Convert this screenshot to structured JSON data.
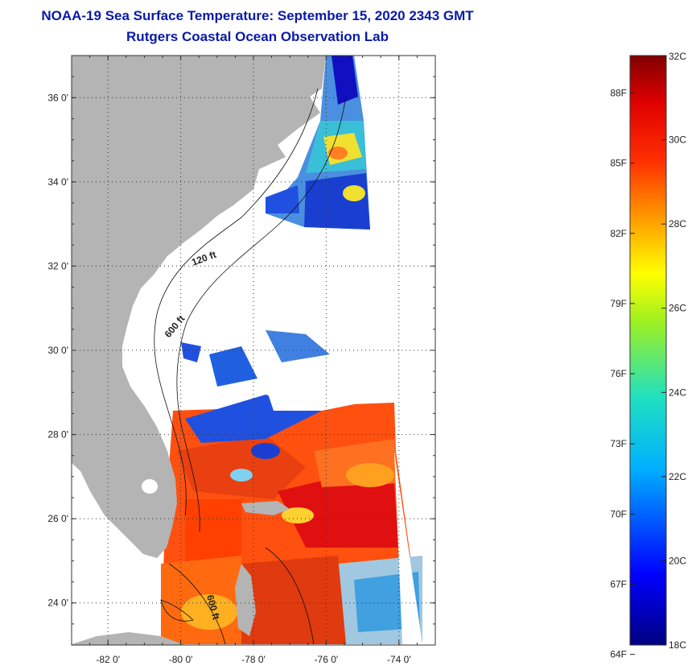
{
  "title": "NOAA-19 Sea Surface Temperature:  September 15, 2020 2343 GMT",
  "subtitle": "Rutgers Coastal Ocean Observation Lab",
  "map": {
    "lat_range": [
      23.0,
      37.0
    ],
    "lon_range": [
      -83.0,
      -73.0
    ],
    "lat_labels": [
      {
        "value": 36,
        "text": "36 0'"
      },
      {
        "value": 34,
        "text": "34 0'"
      },
      {
        "value": 32,
        "text": "32 0'"
      },
      {
        "value": 30,
        "text": "30 0'"
      },
      {
        "value": 28,
        "text": "28 0'"
      },
      {
        "value": 26,
        "text": "26 0'"
      },
      {
        "value": 24,
        "text": "24 0'"
      }
    ],
    "lon_labels": [
      {
        "value": -82,
        "text": "-82 0'"
      },
      {
        "value": -80,
        "text": "-80 0'"
      },
      {
        "value": -78,
        "text": "-78 0'"
      },
      {
        "value": -76,
        "text": "-76 0'"
      },
      {
        "value": -74,
        "text": "-74 0'"
      }
    ],
    "contour_labels": [
      {
        "text": "120 ft"
      },
      {
        "text": "600 ft"
      },
      {
        "text": "600 ft"
      }
    ],
    "colors": {
      "land": "#b4b4b4",
      "ocean_nodata": "#ffffff",
      "grid": "#333333"
    }
  },
  "colorbar": {
    "range_c": [
      18,
      32
    ],
    "celsius_labels": [
      {
        "value": 32,
        "text": "32C"
      },
      {
        "value": 30,
        "text": "30C"
      },
      {
        "value": 28,
        "text": "28C"
      },
      {
        "value": 26,
        "text": "26C"
      },
      {
        "value": 24,
        "text": "24C"
      },
      {
        "value": 22,
        "text": "22C"
      },
      {
        "value": 20,
        "text": "20C"
      },
      {
        "value": 18,
        "text": "18C"
      }
    ],
    "fahrenheit_labels": [
      {
        "value": 88,
        "text": "88F"
      },
      {
        "value": 85,
        "text": "85F"
      },
      {
        "value": 82,
        "text": "82F"
      },
      {
        "value": 79,
        "text": "79F"
      },
      {
        "value": 76,
        "text": "76F"
      },
      {
        "value": 73,
        "text": "73F"
      },
      {
        "value": 70,
        "text": "70F"
      },
      {
        "value": 67,
        "text": "67F"
      },
      {
        "value": 64,
        "text": "64F"
      }
    ]
  }
}
